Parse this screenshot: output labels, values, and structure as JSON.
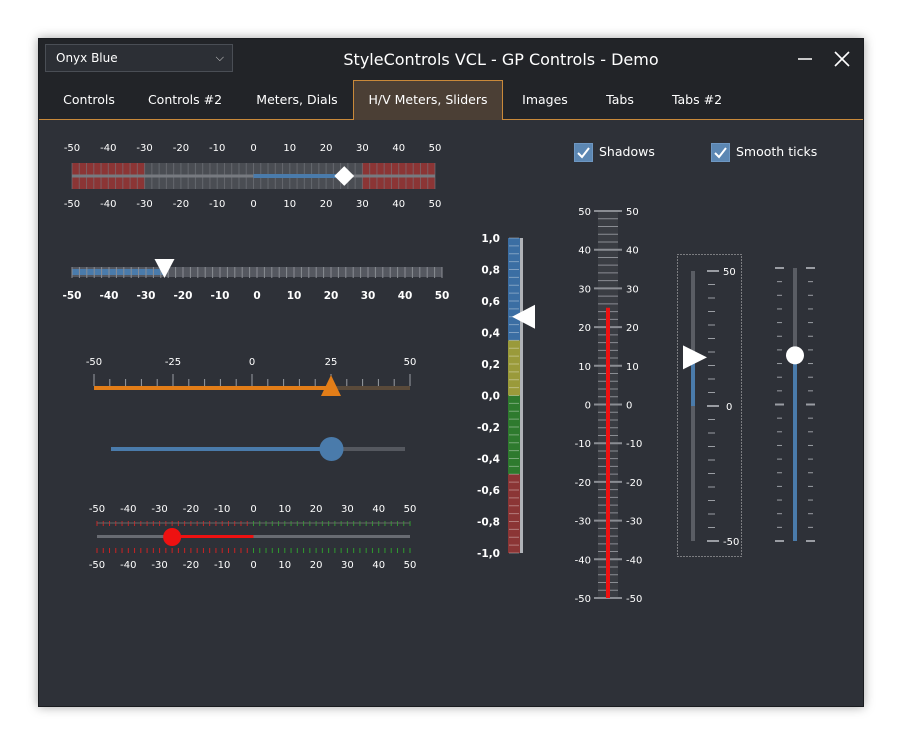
{
  "window": {
    "title": "StyleControls VCL - GP Controls - Demo",
    "style_selector": {
      "value": "Onyx Blue"
    },
    "minimize_glyph": "—",
    "close_glyph": "✕"
  },
  "tabs": [
    {
      "label": "Controls",
      "active": false
    },
    {
      "label": "Controls #2",
      "active": false
    },
    {
      "label": "Meters, Dials",
      "active": false
    },
    {
      "label": "H/V Meters, Sliders",
      "active": true
    },
    {
      "label": "Images",
      "active": false
    },
    {
      "label": "Tabs",
      "active": false
    },
    {
      "label": "Tabs #2",
      "active": false
    }
  ],
  "options": {
    "shadows": {
      "label": "Shadows",
      "checked": true
    },
    "smooth_ticks": {
      "label": "Smooth ticks",
      "checked": true
    }
  },
  "colors": {
    "accent_blue": "#4a7bab",
    "orange": "#e27d18",
    "red": "#ee1111",
    "green": "#2e8b2e",
    "zone_red": "#8b3535",
    "tab_border": "#c9893a"
  },
  "h_meter_1": {
    "value": 25,
    "tick_labels": [
      "-50",
      "-40",
      "-30",
      "-20",
      "-10",
      "0",
      "10",
      "20",
      "30",
      "40",
      "50"
    ]
  },
  "h_meter_2": {
    "value": -25,
    "tick_labels": [
      "-50",
      "-40",
      "-30",
      "-20",
      "-10",
      "0",
      "10",
      "20",
      "30",
      "40",
      "50"
    ]
  },
  "h_slider_orange": {
    "value": 25,
    "tick_labels": [
      "-50",
      "-25",
      "0",
      "25",
      "50"
    ]
  },
  "h_slider_blue": {
    "value": 0.75
  },
  "h_slider_red": {
    "value": -26,
    "tick_labels": [
      "-50",
      "-40",
      "-30",
      "-20",
      "-10",
      "0",
      "10",
      "20",
      "30",
      "40",
      "50"
    ]
  },
  "v_meter_color": {
    "value": 0.5,
    "tick_labels": [
      "1,0",
      "0,8",
      "0,6",
      "0,4",
      "0,2",
      "0,0",
      "-0,2",
      "-0,4",
      "-0,6",
      "-0,8",
      "-1,0"
    ]
  },
  "v_meter_red": {
    "value": 25,
    "tick_labels": [
      "50",
      "40",
      "30",
      "20",
      "10",
      "0",
      "-10",
      "-20",
      "-30",
      "-40",
      "-50"
    ]
  },
  "v_slider_framed": {
    "value": 18,
    "tick_labels": [
      "50",
      "0",
      "-50"
    ]
  },
  "v_slider_knob": {
    "value": 0.68
  }
}
